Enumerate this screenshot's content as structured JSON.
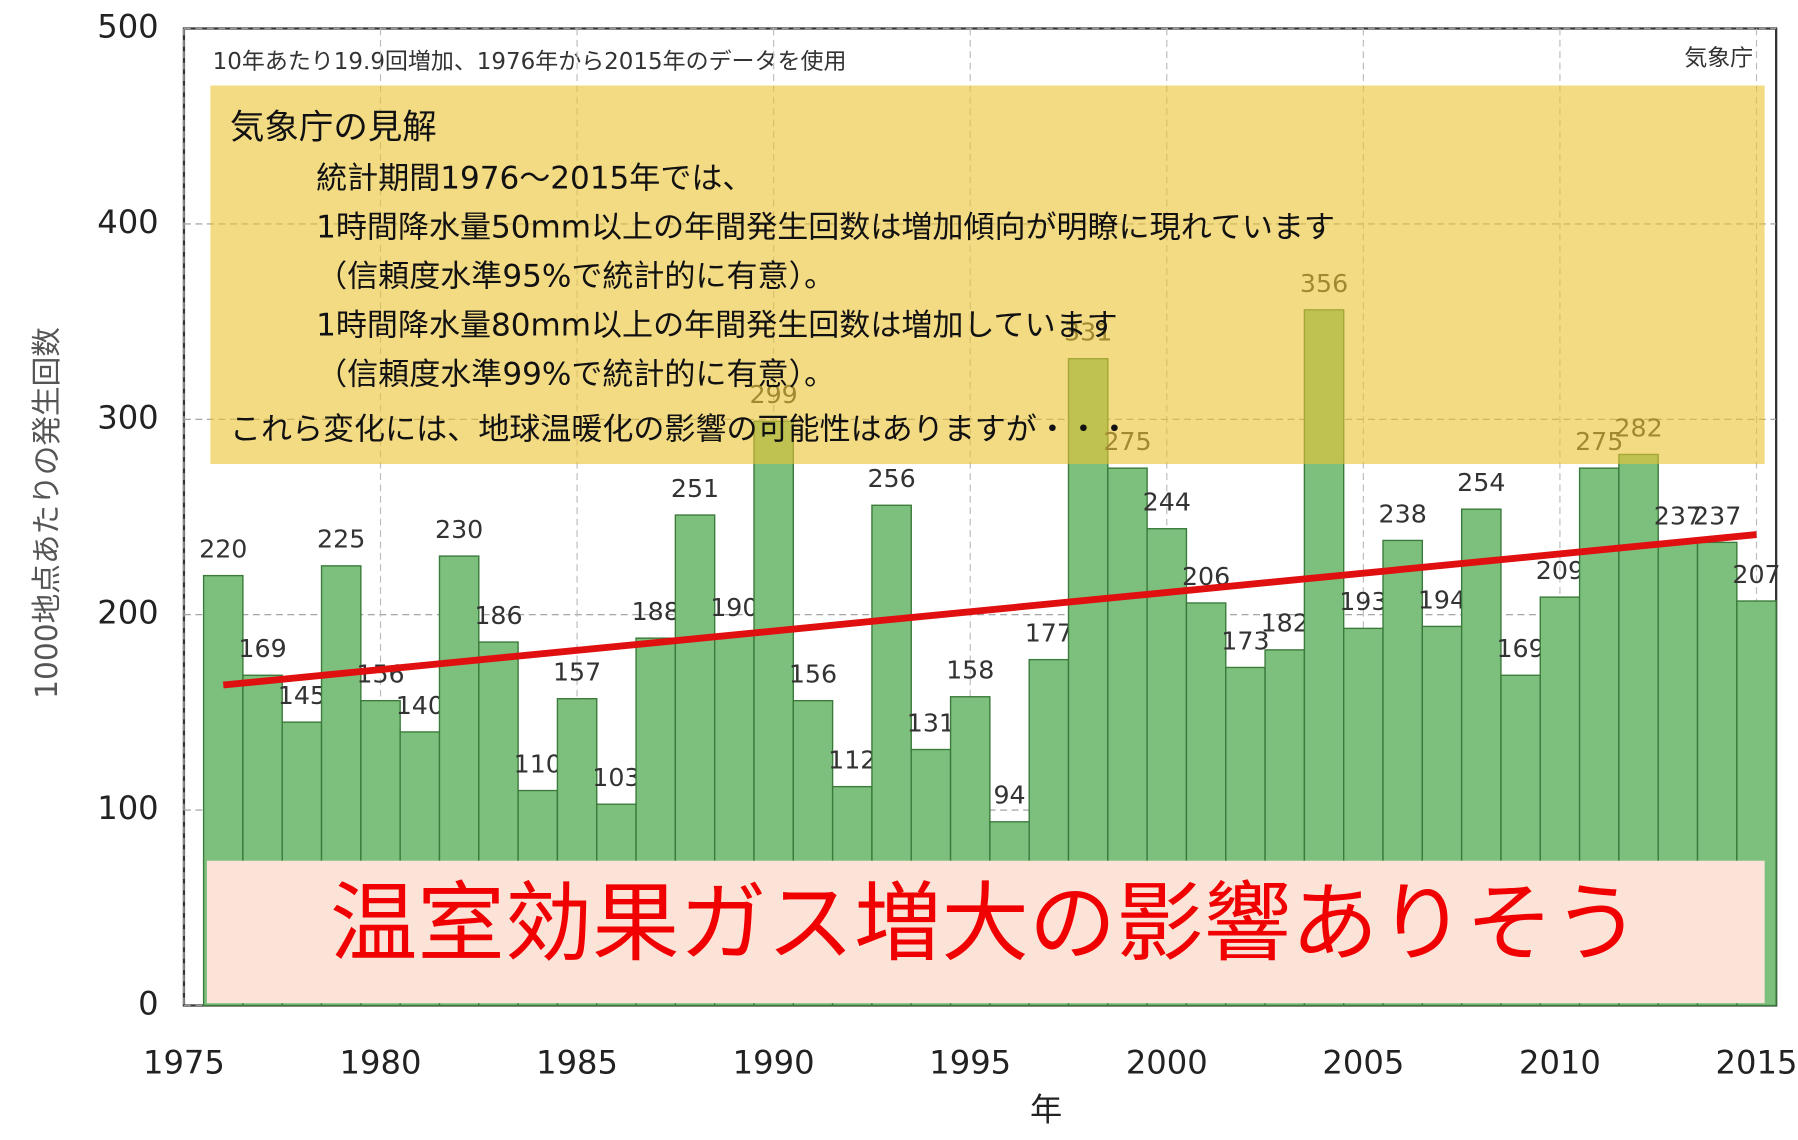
{
  "chart_data": {
    "type": "bar",
    "note": "10年あたり19.9回増加、1976年から2015年のデータを使用",
    "source": "気象庁",
    "x_label": "年",
    "y_label": "1000地点あたりの発生回数",
    "x": [
      1976,
      1977,
      1978,
      1979,
      1980,
      1981,
      1982,
      1983,
      1984,
      1985,
      1986,
      1987,
      1988,
      1989,
      1990,
      1991,
      1992,
      1993,
      1994,
      1995,
      1996,
      1997,
      1998,
      1999,
      2000,
      2001,
      2002,
      2003,
      2004,
      2005,
      2006,
      2007,
      2008,
      2009,
      2010,
      2011,
      2012,
      2013,
      2014,
      2015
    ],
    "values": [
      220,
      169,
      145,
      225,
      156,
      140,
      230,
      186,
      110,
      157,
      103,
      188,
      251,
      190,
      299,
      156,
      112,
      256,
      131,
      158,
      94,
      177,
      331,
      275,
      244,
      206,
      173,
      182,
      356,
      193,
      238,
      194,
      254,
      169,
      209,
      275,
      282,
      237,
      237,
      207
    ],
    "color": "#7dbf7d",
    "trend": {
      "x": [
        1976,
        2015
      ],
      "values": [
        164,
        241
      ],
      "color": "#e01010"
    },
    "xlim": [
      1975,
      2015.5
    ],
    "xticks": [
      1975,
      1980,
      1985,
      1990,
      1995,
      2000,
      2005,
      2010,
      2015
    ],
    "ylim": [
      0,
      500
    ],
    "yticks": [
      0,
      100,
      200,
      300,
      400,
      500
    ],
    "grid": true,
    "callout": {
      "heading": "気象庁の見解",
      "lines": [
        "統計期間1976～2015年では、",
        "1時間降水量50mm以上の年間発生回数は増加傾向が明瞭に現れています",
        "（信頼度水準95%で統計的に有意）。",
        "1時間降水量80mm以上の年間発生回数は増加しています",
        "（信頼度水準99%で統計的に有意）。"
      ],
      "closing": "これら変化には、地球温暖化の影響の可能性はありますが・・・"
    },
    "conclusion": "温室効果ガス増大の影響ありそう"
  }
}
